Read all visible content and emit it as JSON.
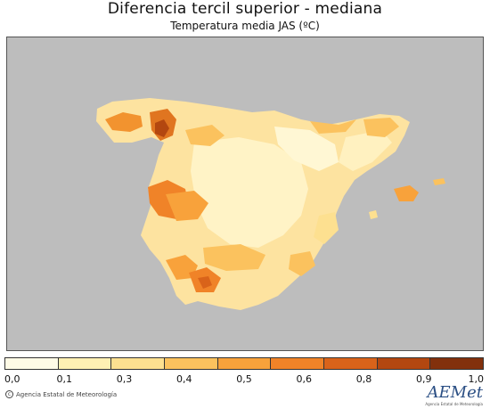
{
  "header": {
    "title": "Diferencia tercil superior - mediana",
    "subtitle": "Temperatura media JAS (ºC)"
  },
  "map": {
    "background_color": "#bdbdbd",
    "region": "Península Ibérica y Baleares"
  },
  "legend": {
    "bins": [
      {
        "color": "#fffbe6"
      },
      {
        "color": "#fff0b3"
      },
      {
        "color": "#fde090"
      },
      {
        "color": "#fbc25e"
      },
      {
        "color": "#f8a23b"
      },
      {
        "color": "#f08328"
      },
      {
        "color": "#d9631a"
      },
      {
        "color": "#b34710"
      },
      {
        "color": "#82300c"
      }
    ],
    "labels": [
      {
        "text": "0,0",
        "value": 0.0
      },
      {
        "text": "0,1",
        "value": 0.1
      },
      {
        "text": "0,3",
        "value": 0.3
      },
      {
        "text": "0,4",
        "value": 0.4
      },
      {
        "text": "0,5",
        "value": 0.5
      },
      {
        "text": "0,6",
        "value": 0.6
      },
      {
        "text": "0,8",
        "value": 0.8
      },
      {
        "text": "0,9",
        "value": 0.9
      },
      {
        "text": "1,0",
        "value": 1.0
      }
    ]
  },
  "footer": {
    "credit": "Agencia Estatal de Meteorología",
    "logo_text": "AEMet",
    "logo_tagline": "Agencia Estatal de Meteorología"
  }
}
